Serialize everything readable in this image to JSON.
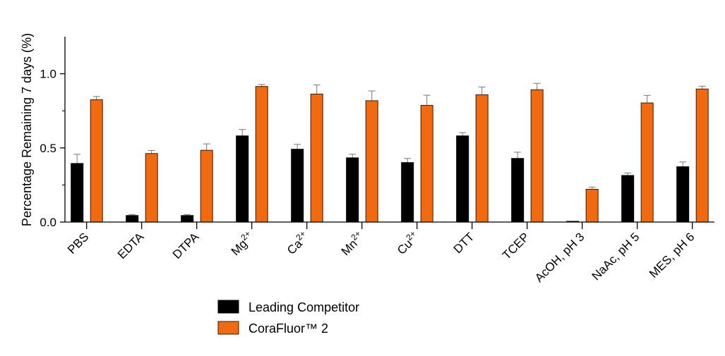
{
  "chart_data": {
    "type": "bar",
    "title": "",
    "xlabel": "",
    "ylabel": "Percentage Remaining 7 days (%)",
    "ylim": [
      0,
      1.25
    ],
    "yticks": [
      {
        "value": 0,
        "label": "0.0"
      },
      {
        "value": 0.5,
        "label": "0.5"
      },
      {
        "value": 1.0,
        "label": "1.0"
      }
    ],
    "yminor_ticks": [
      0.25,
      0.75
    ],
    "grid": false,
    "legend_position": "bottom",
    "categories": [
      {
        "label": "PBS",
        "sup": ""
      },
      {
        "label": "EDTA",
        "sup": ""
      },
      {
        "label": "DTPA",
        "sup": ""
      },
      {
        "label": "Mg",
        "sup": "2+"
      },
      {
        "label": "Ca",
        "sup": "2+"
      },
      {
        "label": "Mn",
        "sup": "2+"
      },
      {
        "label": "Cu",
        "sup": "2+"
      },
      {
        "label": "DTT",
        "sup": ""
      },
      {
        "label": "TCEP",
        "sup": ""
      },
      {
        "label": "AcOH, pH 3",
        "sup": ""
      },
      {
        "label": "NaAc, pH 5",
        "sup": ""
      },
      {
        "label": "MES, pH 6",
        "sup": ""
      }
    ],
    "series": [
      {
        "name": "Leading Competitor",
        "color": "#000000",
        "values": [
          0.395,
          0.044,
          0.044,
          0.581,
          0.491,
          0.433,
          0.401,
          0.581,
          0.429,
          0.005,
          0.314,
          0.373
        ],
        "errors": [
          0.062,
          0.007,
          0.007,
          0.043,
          0.033,
          0.024,
          0.028,
          0.022,
          0.042,
          0.0,
          0.017,
          0.032
        ]
      },
      {
        "name": "CoraFluor™ 2",
        "color": "#F26A10",
        "values": [
          0.825,
          0.462,
          0.484,
          0.914,
          0.863,
          0.818,
          0.787,
          0.858,
          0.892,
          0.221,
          0.803,
          0.897
        ],
        "errors": [
          0.022,
          0.021,
          0.043,
          0.014,
          0.062,
          0.066,
          0.068,
          0.053,
          0.043,
          0.015,
          0.051,
          0.019
        ]
      }
    ]
  }
}
